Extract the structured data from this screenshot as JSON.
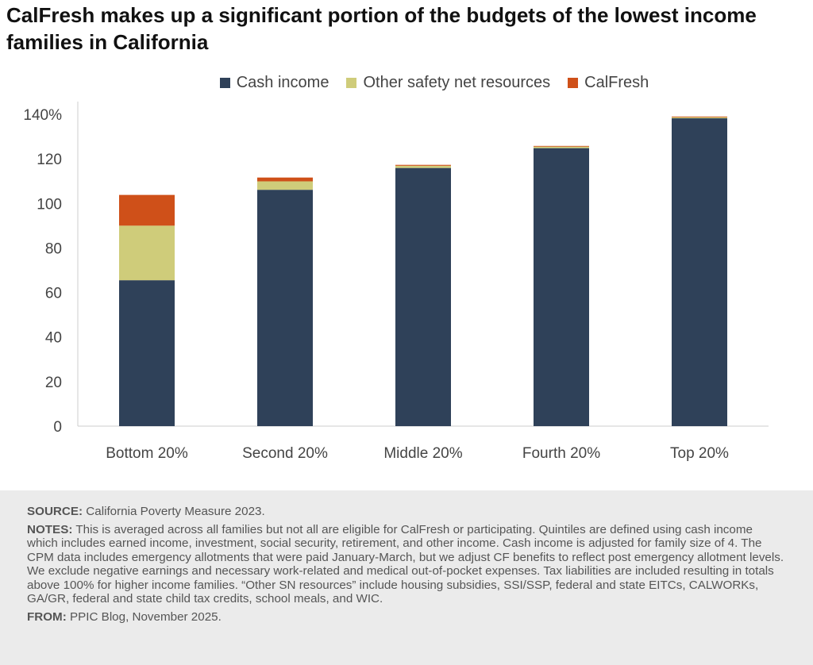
{
  "chart_data": {
    "type": "bar",
    "stacked": true,
    "title": "CalFresh makes up a significant portion of the budgets of the lowest income families in California",
    "categories": [
      "Bottom 20%",
      "Second 20%",
      "Middle 20%",
      "Fourth 20%",
      "Top 20%"
    ],
    "series": [
      {
        "name": "Cash income",
        "color": "#2f4159",
        "values": [
          65.5,
          106.1,
          115.9,
          124.8,
          138.2
        ]
      },
      {
        "name": "Other safety net resources",
        "color": "#cfcc7a",
        "values": [
          24.5,
          3.8,
          1.0,
          0.7,
          0.5
        ]
      },
      {
        "name": "CalFresh",
        "color": "#cf5019",
        "values": [
          13.8,
          1.7,
          0.4,
          0.3,
          0.3
        ]
      }
    ],
    "ylim": [
      0,
      140
    ],
    "yticks": [
      "0",
      "20",
      "40",
      "60",
      "80",
      "100",
      "120",
      "140%"
    ],
    "ytick_values": [
      0,
      20,
      40,
      60,
      80,
      100,
      120,
      140
    ],
    "grid": false,
    "legend": "top"
  },
  "footer": {
    "source_label": "SOURCE:",
    "source": "California Poverty Measure 2023.",
    "notes_label": "NOTES:",
    "notes": "This is averaged across all families but not all are eligible for CalFresh or participating. Quintiles are defined using cash income which includes earned income, investment, social security, retirement, and other income. Cash income is adjusted for family size of 4. The CPM data includes emergency allotments that were paid January-March, but we adjust CF benefits to reflect post emergency allotment levels. We exclude negative earnings and necessary work-related and medical out-of-pocket expenses. Tax liabilities are included resulting in totals above 100% for higher income families. “Other SN resources” include housing subsidies, SSI/SSP, federal and state EITCs, CALWORKs, GA/GR, federal and state child tax credits, school meals, and WIC.",
    "from_label": "FROM:",
    "from": "PPIC Blog, November 2025."
  }
}
